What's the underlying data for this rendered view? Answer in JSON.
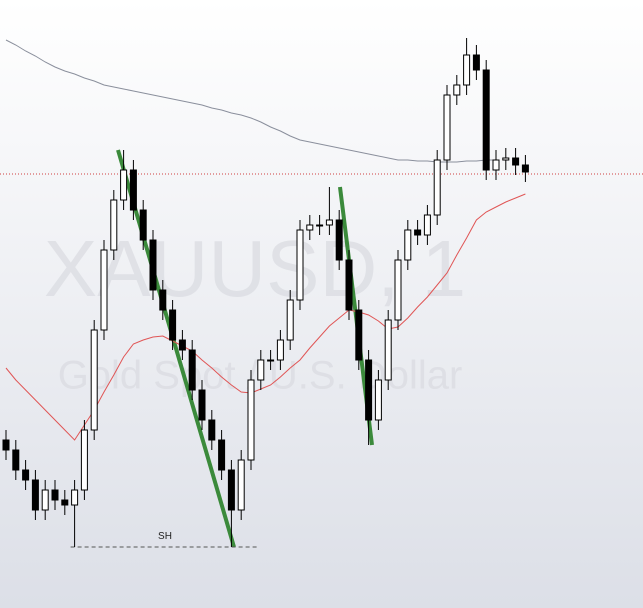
{
  "chart_data": {
    "type": "candlestick",
    "watermark_title": "XAUUSD, 1",
    "watermark_subtitle": "Gold Spot / U.S. Dollar",
    "swing_label": "SH",
    "ylim": [
      0,
      608
    ],
    "open": [
      168,
      158,
      138,
      128,
      98,
      118,
      108,
      103,
      118,
      178,
      278,
      358,
      408,
      438,
      398,
      368,
      318,
      298,
      268,
      258,
      218,
      188,
      168,
      138,
      98,
      148,
      228,
      248,
      248,
      268,
      308,
      378,
      383,
      383,
      388,
      348,
      298,
      248,
      188,
      228,
      288,
      348,
      378,
      373,
      393,
      448,
      513,
      523,
      553,
      538,
      438,
      448,
      450,
      443
    ],
    "high": [
      178,
      168,
      148,
      138,
      128,
      128,
      118,
      128,
      188,
      288,
      368,
      418,
      458,
      448,
      408,
      378,
      328,
      308,
      278,
      268,
      228,
      198,
      178,
      148,
      158,
      238,
      258,
      258,
      278,
      318,
      388,
      393,
      393,
      421,
      398,
      358,
      308,
      258,
      238,
      298,
      358,
      388,
      388,
      403,
      458,
      523,
      533,
      570,
      563,
      548,
      458,
      460,
      460,
      453
    ],
    "low": [
      148,
      128,
      118,
      88,
      88,
      98,
      93,
      61,
      108,
      168,
      268,
      348,
      398,
      388,
      358,
      308,
      288,
      258,
      248,
      208,
      178,
      158,
      128,
      61,
      88,
      138,
      218,
      238,
      238,
      258,
      298,
      368,
      373,
      373,
      338,
      288,
      238,
      163,
      178,
      218,
      278,
      338,
      363,
      363,
      383,
      438,
      503,
      513,
      528,
      428,
      428,
      438,
      433,
      426
    ],
    "close": [
      158,
      138,
      128,
      98,
      118,
      108,
      103,
      118,
      178,
      278,
      358,
      408,
      438,
      398,
      368,
      318,
      298,
      268,
      258,
      218,
      188,
      168,
      138,
      98,
      148,
      228,
      248,
      248,
      268,
      308,
      378,
      383,
      383,
      388,
      348,
      298,
      248,
      188,
      228,
      288,
      348,
      378,
      373,
      393,
      448,
      513,
      523,
      553,
      538,
      438,
      448,
      450,
      443,
      436
    ],
    "up_color": "#ffffff",
    "down_color": "#000000",
    "series": [
      {
        "color": "#8a8f9c",
        "values": [
          568,
          563,
          557,
          552,
          546,
          541,
          537,
          534,
          530,
          527,
          523,
          521,
          519,
          517,
          515,
          513,
          511,
          509,
          507,
          505,
          503,
          500,
          498,
          495,
          493,
          490,
          486,
          481,
          477,
          472,
          468,
          466,
          464,
          462,
          460,
          458,
          456,
          454,
          452,
          450,
          448,
          448,
          447,
          447,
          446,
          446,
          446,
          447,
          447,
          448,
          448,
          null,
          null,
          null
        ]
      },
      {
        "color": "#e05555",
        "values": [
          240,
          228,
          218,
          208,
          198,
          188,
          178,
          168,
          183,
          198,
          216,
          233,
          251,
          264,
          268,
          271,
          272,
          267,
          262,
          257,
          248,
          240,
          231,
          223,
          216,
          215,
          219,
          223,
          231,
          240,
          248,
          260,
          271,
          282,
          290,
          298,
          296,
          293,
          287,
          279,
          281,
          290,
          301,
          311,
          323,
          335,
          353,
          370,
          388,
          396,
          401,
          406,
          410,
          414
        ]
      }
    ],
    "price_line": 434,
    "price_line_color": "#d04040",
    "swing_level": 61
  }
}
